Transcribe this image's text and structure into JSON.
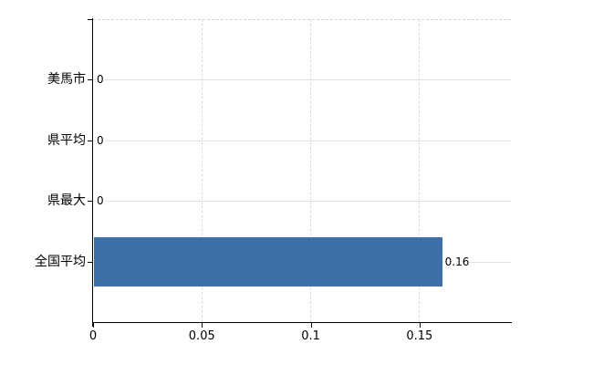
{
  "chart_data": {
    "type": "bar",
    "orientation": "horizontal",
    "categories": [
      "美馬市",
      "県平均",
      "県最大",
      "全国平均"
    ],
    "values": [
      0,
      0,
      0,
      0.16
    ],
    "value_labels": [
      "0",
      "0",
      "0",
      "0.16"
    ],
    "xticks": [
      0,
      0.05,
      0.1,
      0.15
    ],
    "xtick_labels": [
      "0",
      "0.05",
      "0.1",
      "0.15"
    ],
    "xlim": [
      0,
      0.192
    ],
    "bar_color": "#3e6fa8",
    "grid": true,
    "gridline_color_horizontal": "#dde3de",
    "gridline_color_vertical": "#dcdcdc",
    "axis_color": "#000000",
    "background_color": "#ffffff",
    "title": "",
    "legend_position": "none"
  }
}
